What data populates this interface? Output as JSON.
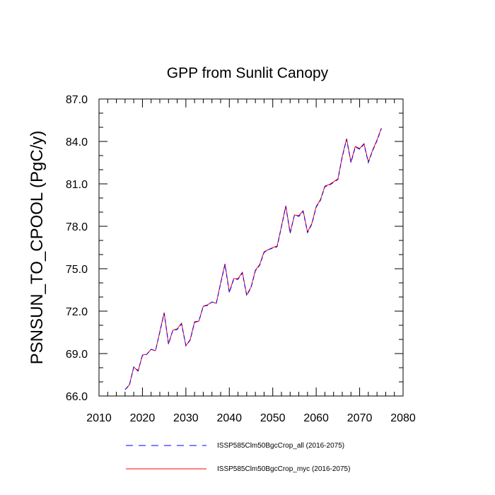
{
  "chart_data": {
    "type": "line",
    "title": "GPP from Sunlit Canopy",
    "xlabel": "",
    "ylabel": "PSNSUN_TO_CPOOL  (PgC/y)",
    "xlim": [
      2010,
      2080
    ],
    "ylim": [
      66.0,
      87.0
    ],
    "x_ticks": [
      2010,
      2020,
      2030,
      2040,
      2050,
      2060,
      2070,
      2080
    ],
    "x_tick_labels": [
      "2010",
      "2020",
      "2030",
      "2040",
      "2050",
      "2060",
      "2070",
      "2080"
    ],
    "y_ticks": [
      66.0,
      69.0,
      72.0,
      75.0,
      78.0,
      81.0,
      84.0,
      87.0
    ],
    "y_tick_labels": [
      "66.0",
      "69.0",
      "72.0",
      "75.0",
      "78.0",
      "81.0",
      "84.0",
      "87.0"
    ],
    "grid": false,
    "legend_position": "bottom",
    "x": [
      2016,
      2017,
      2018,
      2019,
      2020,
      2021,
      2022,
      2023,
      2024,
      2025,
      2026,
      2027,
      2028,
      2029,
      2030,
      2031,
      2032,
      2033,
      2034,
      2035,
      2036,
      2037,
      2038,
      2039,
      2040,
      2041,
      2042,
      2043,
      2044,
      2045,
      2046,
      2047,
      2048,
      2049,
      2050,
      2051,
      2052,
      2053,
      2054,
      2055,
      2056,
      2057,
      2058,
      2059,
      2060,
      2061,
      2062,
      2063,
      2064,
      2065,
      2066,
      2067,
      2068,
      2069,
      2070,
      2071,
      2072,
      2073,
      2074,
      2075
    ],
    "series": [
      {
        "name": "ISSP585Clm50BgcCrop_all (2016-2075)",
        "color": "#0000ff",
        "style": "dashed",
        "values": [
          66.45,
          66.75,
          68.05,
          67.8,
          68.85,
          68.95,
          69.3,
          69.2,
          70.5,
          71.85,
          69.65,
          70.65,
          70.7,
          71.1,
          69.55,
          69.95,
          71.2,
          71.3,
          72.35,
          72.4,
          72.65,
          72.55,
          73.95,
          75.3,
          73.3,
          74.25,
          74.25,
          74.7,
          73.1,
          73.65,
          74.85,
          75.25,
          76.15,
          76.35,
          76.45,
          76.55,
          77.95,
          79.4,
          77.5,
          78.8,
          78.7,
          79.05,
          77.55,
          78.15,
          79.35,
          79.85,
          80.8,
          80.9,
          81.1,
          81.3,
          82.9,
          84.15,
          82.5,
          83.6,
          83.45,
          83.8,
          82.5,
          83.35,
          84.05,
          84.9
        ]
      },
      {
        "name": "ISSP585Clm50BgcCrop_myc (2016-2075)",
        "color": "#ff0000",
        "style": "solid",
        "values": [
          66.45,
          66.8,
          68.05,
          67.75,
          68.9,
          68.95,
          69.3,
          69.2,
          70.55,
          71.9,
          69.7,
          70.65,
          70.75,
          71.15,
          69.55,
          70.0,
          71.25,
          71.3,
          72.35,
          72.45,
          72.65,
          72.55,
          74.0,
          75.35,
          73.35,
          74.3,
          74.3,
          74.75,
          73.15,
          73.7,
          74.9,
          75.3,
          76.2,
          76.35,
          76.5,
          76.6,
          78.0,
          79.45,
          77.55,
          78.8,
          78.75,
          79.1,
          77.6,
          78.2,
          79.4,
          79.9,
          80.85,
          80.95,
          81.15,
          81.35,
          82.95,
          84.2,
          82.55,
          83.65,
          83.5,
          83.85,
          82.55,
          83.4,
          84.1,
          84.95
        ]
      }
    ]
  }
}
